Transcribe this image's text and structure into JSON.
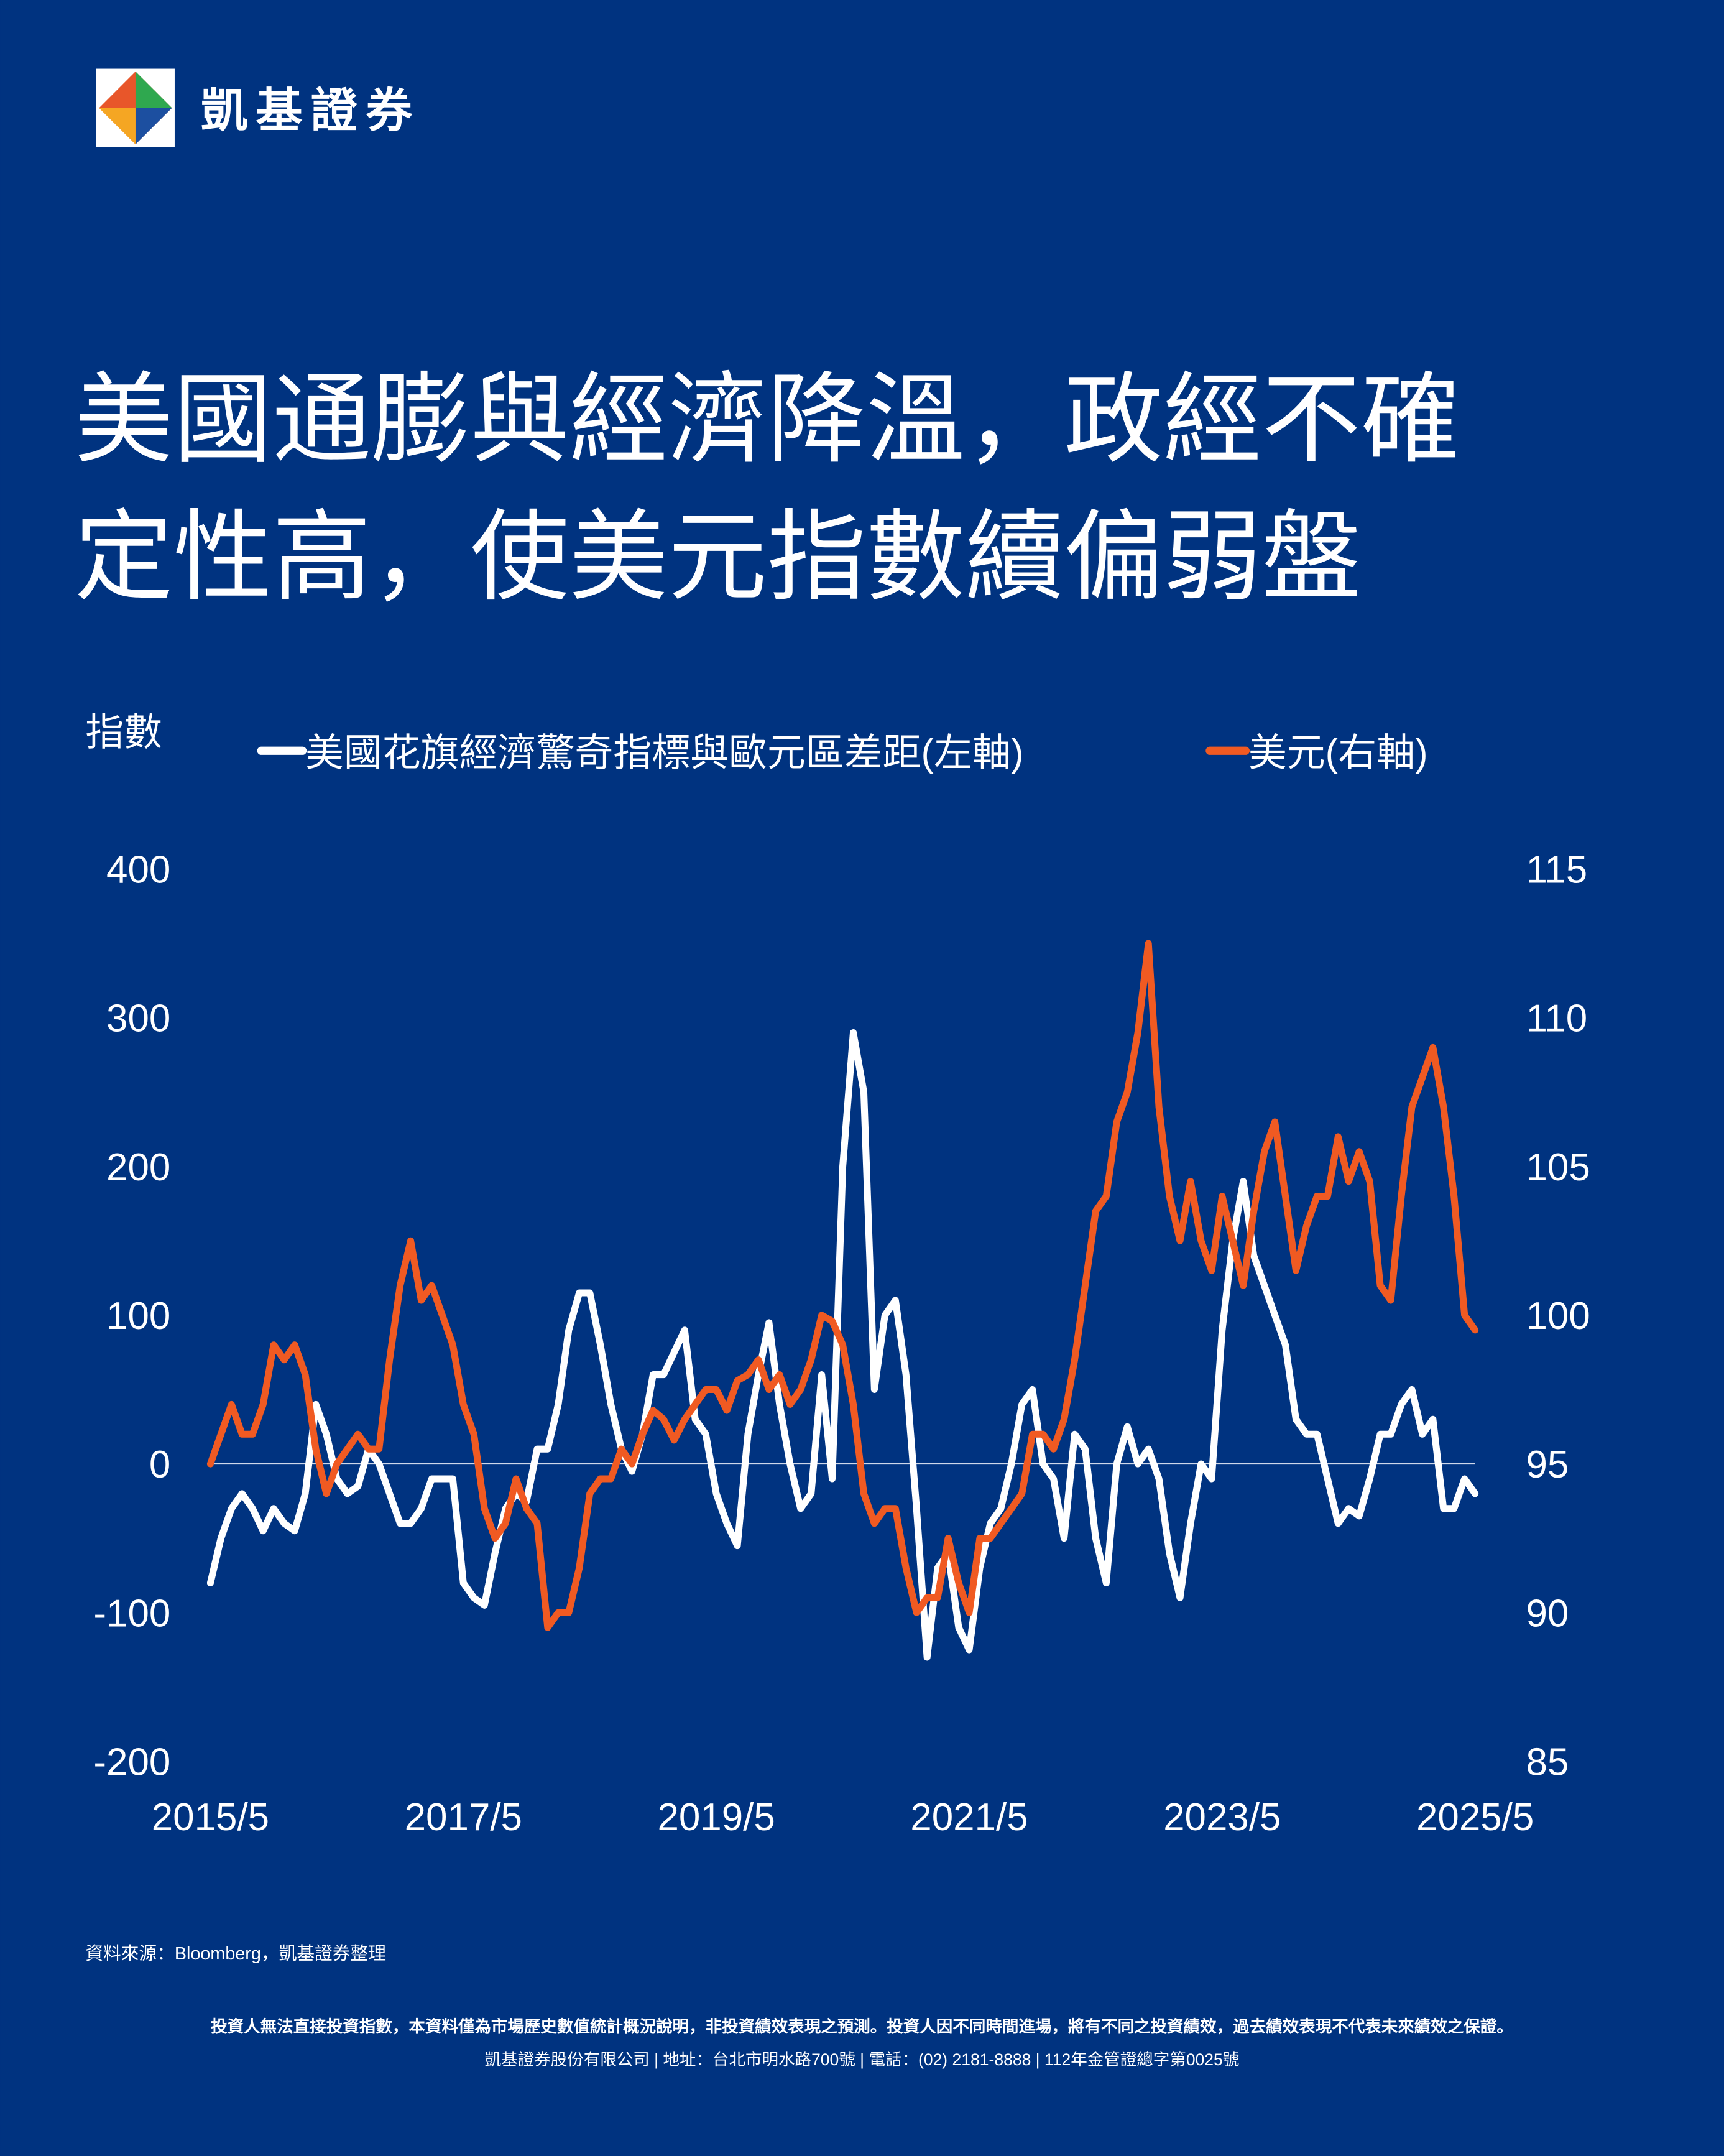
{
  "brand": "凱基證券",
  "chart_data": {
    "type": "line",
    "title_lines": [
      "美國通膨與經濟降溫，政經不確",
      "定性高，使美元指數續偏弱盤"
    ],
    "y_label": "指數",
    "x": [
      "2015/5",
      "2015/6",
      "2015/7",
      "2015/8",
      "2015/9",
      "2015/10",
      "2015/11",
      "2015/12",
      "2016/1",
      "2016/2",
      "2016/3",
      "2016/4",
      "2016/5",
      "2016/6",
      "2016/7",
      "2016/8",
      "2016/9",
      "2016/10",
      "2016/11",
      "2016/12",
      "2017/1",
      "2017/2",
      "2017/3",
      "2017/4",
      "2017/5",
      "2017/6",
      "2017/7",
      "2017/8",
      "2017/9",
      "2017/10",
      "2017/11",
      "2017/12",
      "2018/1",
      "2018/2",
      "2018/3",
      "2018/4",
      "2018/5",
      "2018/6",
      "2018/7",
      "2018/8",
      "2018/9",
      "2018/10",
      "2018/11",
      "2018/12",
      "2019/1",
      "2019/2",
      "2019/3",
      "2019/4",
      "2019/5",
      "2019/6",
      "2019/7",
      "2019/8",
      "2019/9",
      "2019/10",
      "2019/11",
      "2019/12",
      "2020/1",
      "2020/2",
      "2020/3",
      "2020/4",
      "2020/5",
      "2020/6",
      "2020/7",
      "2020/8",
      "2020/9",
      "2020/10",
      "2020/11",
      "2020/12",
      "2021/1",
      "2021/2",
      "2021/3",
      "2021/4",
      "2021/5",
      "2021/6",
      "2021/7",
      "2021/8",
      "2021/9",
      "2021/10",
      "2021/11",
      "2021/12",
      "2022/1",
      "2022/2",
      "2022/3",
      "2022/4",
      "2022/5",
      "2022/6",
      "2022/7",
      "2022/8",
      "2022/9",
      "2022/10",
      "2022/11",
      "2022/12",
      "2023/1",
      "2023/2",
      "2023/3",
      "2023/4",
      "2023/5",
      "2023/6",
      "2023/7",
      "2023/8",
      "2023/9",
      "2023/10",
      "2023/11",
      "2023/12",
      "2024/1",
      "2024/2",
      "2024/3",
      "2024/4",
      "2024/5",
      "2024/6",
      "2024/7",
      "2024/8",
      "2024/9",
      "2024/10",
      "2024/11",
      "2024/12",
      "2025/1",
      "2025/2",
      "2025/3",
      "2025/4",
      "2025/5"
    ],
    "xticks": [
      "2015/5",
      "2017/5",
      "2019/5",
      "2021/5",
      "2023/5",
      "2025/5"
    ],
    "series": [
      {
        "name": "美國花旗經濟驚奇指標與歐元區差距(左軸)",
        "color": "#ffffff",
        "values": [
          -80,
          -50,
          -30,
          -20,
          -30,
          -45,
          -30,
          -40,
          -45,
          -20,
          40,
          20,
          -10,
          -20,
          -15,
          10,
          0,
          -20,
          -40,
          -40,
          -30,
          -10,
          -10,
          -10,
          -80,
          -90,
          -95,
          -60,
          -30,
          -20,
          -25,
          10,
          10,
          40,
          90,
          115,
          115,
          80,
          40,
          10,
          -5,
          20,
          60,
          60,
          75,
          90,
          30,
          20,
          -20,
          -40,
          -55,
          20,
          60,
          95,
          40,
          0,
          -30,
          -20,
          60,
          -10,
          200,
          290,
          250,
          50,
          100,
          110,
          60,
          -30,
          -130,
          -70,
          -60,
          -110,
          -125,
          -70,
          -40,
          -30,
          0,
          40,
          50,
          0,
          -10,
          -50,
          20,
          10,
          -50,
          -80,
          0,
          25,
          0,
          10,
          -10,
          -60,
          -90,
          -40,
          0,
          -10,
          90,
          150,
          190,
          140,
          120,
          100,
          80,
          30,
          20,
          20,
          -10,
          -40,
          -30,
          -35,
          -10,
          20,
          20,
          40,
          50,
          20,
          30,
          -30,
          -30,
          -10,
          -20
        ]
      },
      {
        "name": "美元(右軸)",
        "color": "#f05a22",
        "axis": "y2",
        "values": [
          95,
          96,
          97,
          96,
          96,
          97,
          99,
          98.5,
          99,
          98,
          95.5,
          94,
          95,
          95.5,
          96,
          95.5,
          95.5,
          98.5,
          101,
          102.5,
          100.5,
          101,
          100,
          99,
          97,
          96,
          93.5,
          92.5,
          93,
          94.5,
          93.5,
          93,
          89.5,
          90,
          90,
          91.5,
          94,
          94.5,
          94.5,
          95.5,
          95,
          96,
          96.8,
          96.5,
          95.8,
          96.5,
          97,
          97.5,
          97.5,
          96.8,
          97.8,
          98,
          98.5,
          97.5,
          98,
          97,
          97.5,
          98.5,
          100,
          99.8,
          99,
          97,
          94,
          93,
          93.5,
          93.5,
          91.5,
          90,
          90.5,
          90.5,
          92.5,
          91,
          90,
          92.5,
          92.5,
          93,
          93.5,
          94,
          96,
          96,
          95.5,
          96.5,
          98.5,
          101,
          103.5,
          104,
          106.5,
          107.5,
          109.5,
          112.5,
          107,
          104,
          102.5,
          104.5,
          102.5,
          101.5,
          104,
          102.5,
          101,
          103.5,
          105.5,
          106.5,
          104,
          101.5,
          103,
          104,
          104,
          106,
          104.5,
          105.5,
          104.5,
          101,
          100.5,
          104,
          107,
          108,
          109,
          107,
          104,
          100,
          99.5
        ]
      }
    ],
    "ylim": [
      -200,
      400
    ],
    "yticks": [
      -200,
      -100,
      0,
      100,
      200,
      300,
      400
    ],
    "y2lim": [
      85,
      115
    ],
    "y2ticks": [
      85,
      90,
      95,
      100,
      105,
      110,
      115
    ],
    "zero_line": true
  },
  "footer": {
    "source": "資料來源：Bloomberg，凱基證券整理",
    "disclaimer": "投資人無法直接投資指數，本資料僅為市場歷史數值統計概況說明，非投資績效表現之預測。投資人因不同時間進場，將有不同之投資績效，過去績效表現不代表未來績效之保證。",
    "company": "凱基證券股份有限公司 | 地址：台北市明水路700號 | 電話：(02) 2181-8888 | 112年金管證總字第0025號"
  }
}
